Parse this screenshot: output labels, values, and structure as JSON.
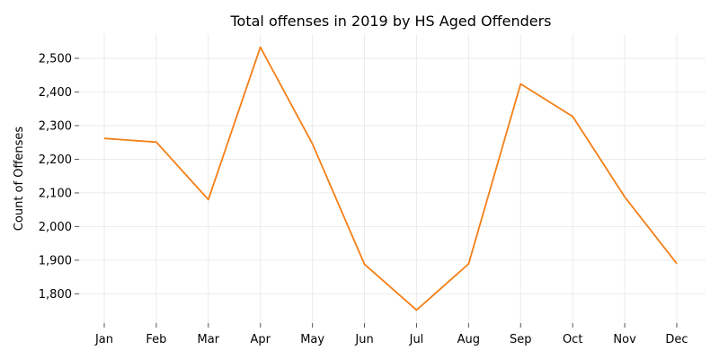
{
  "chart_data": {
    "type": "line",
    "title": "Total offenses in 2019 by HS Aged Offenders",
    "xlabel": "",
    "ylabel": "Count of Offenses",
    "categories": [
      "Jan",
      "Feb",
      "Mar",
      "Apr",
      "May",
      "Jun",
      "Jul",
      "Aug",
      "Sep",
      "Oct",
      "Nov",
      "Dec"
    ],
    "series": [
      {
        "values": [
          2262,
          2251,
          2080,
          2533,
          2246,
          1888,
          1752,
          1889,
          2424,
          2327,
          2088,
          1890
        ]
      }
    ],
    "yticks": [
      1800,
      1900,
      2000,
      2100,
      2200,
      2300,
      2400,
      2500
    ],
    "ytick_labels": [
      "1,800",
      "1,900",
      "2,000",
      "2,100",
      "2,200",
      "2,300",
      "2,400",
      "2,500"
    ],
    "ylim": [
      1713,
      2572
    ],
    "grid": true,
    "line_color": "#f47f17"
  }
}
